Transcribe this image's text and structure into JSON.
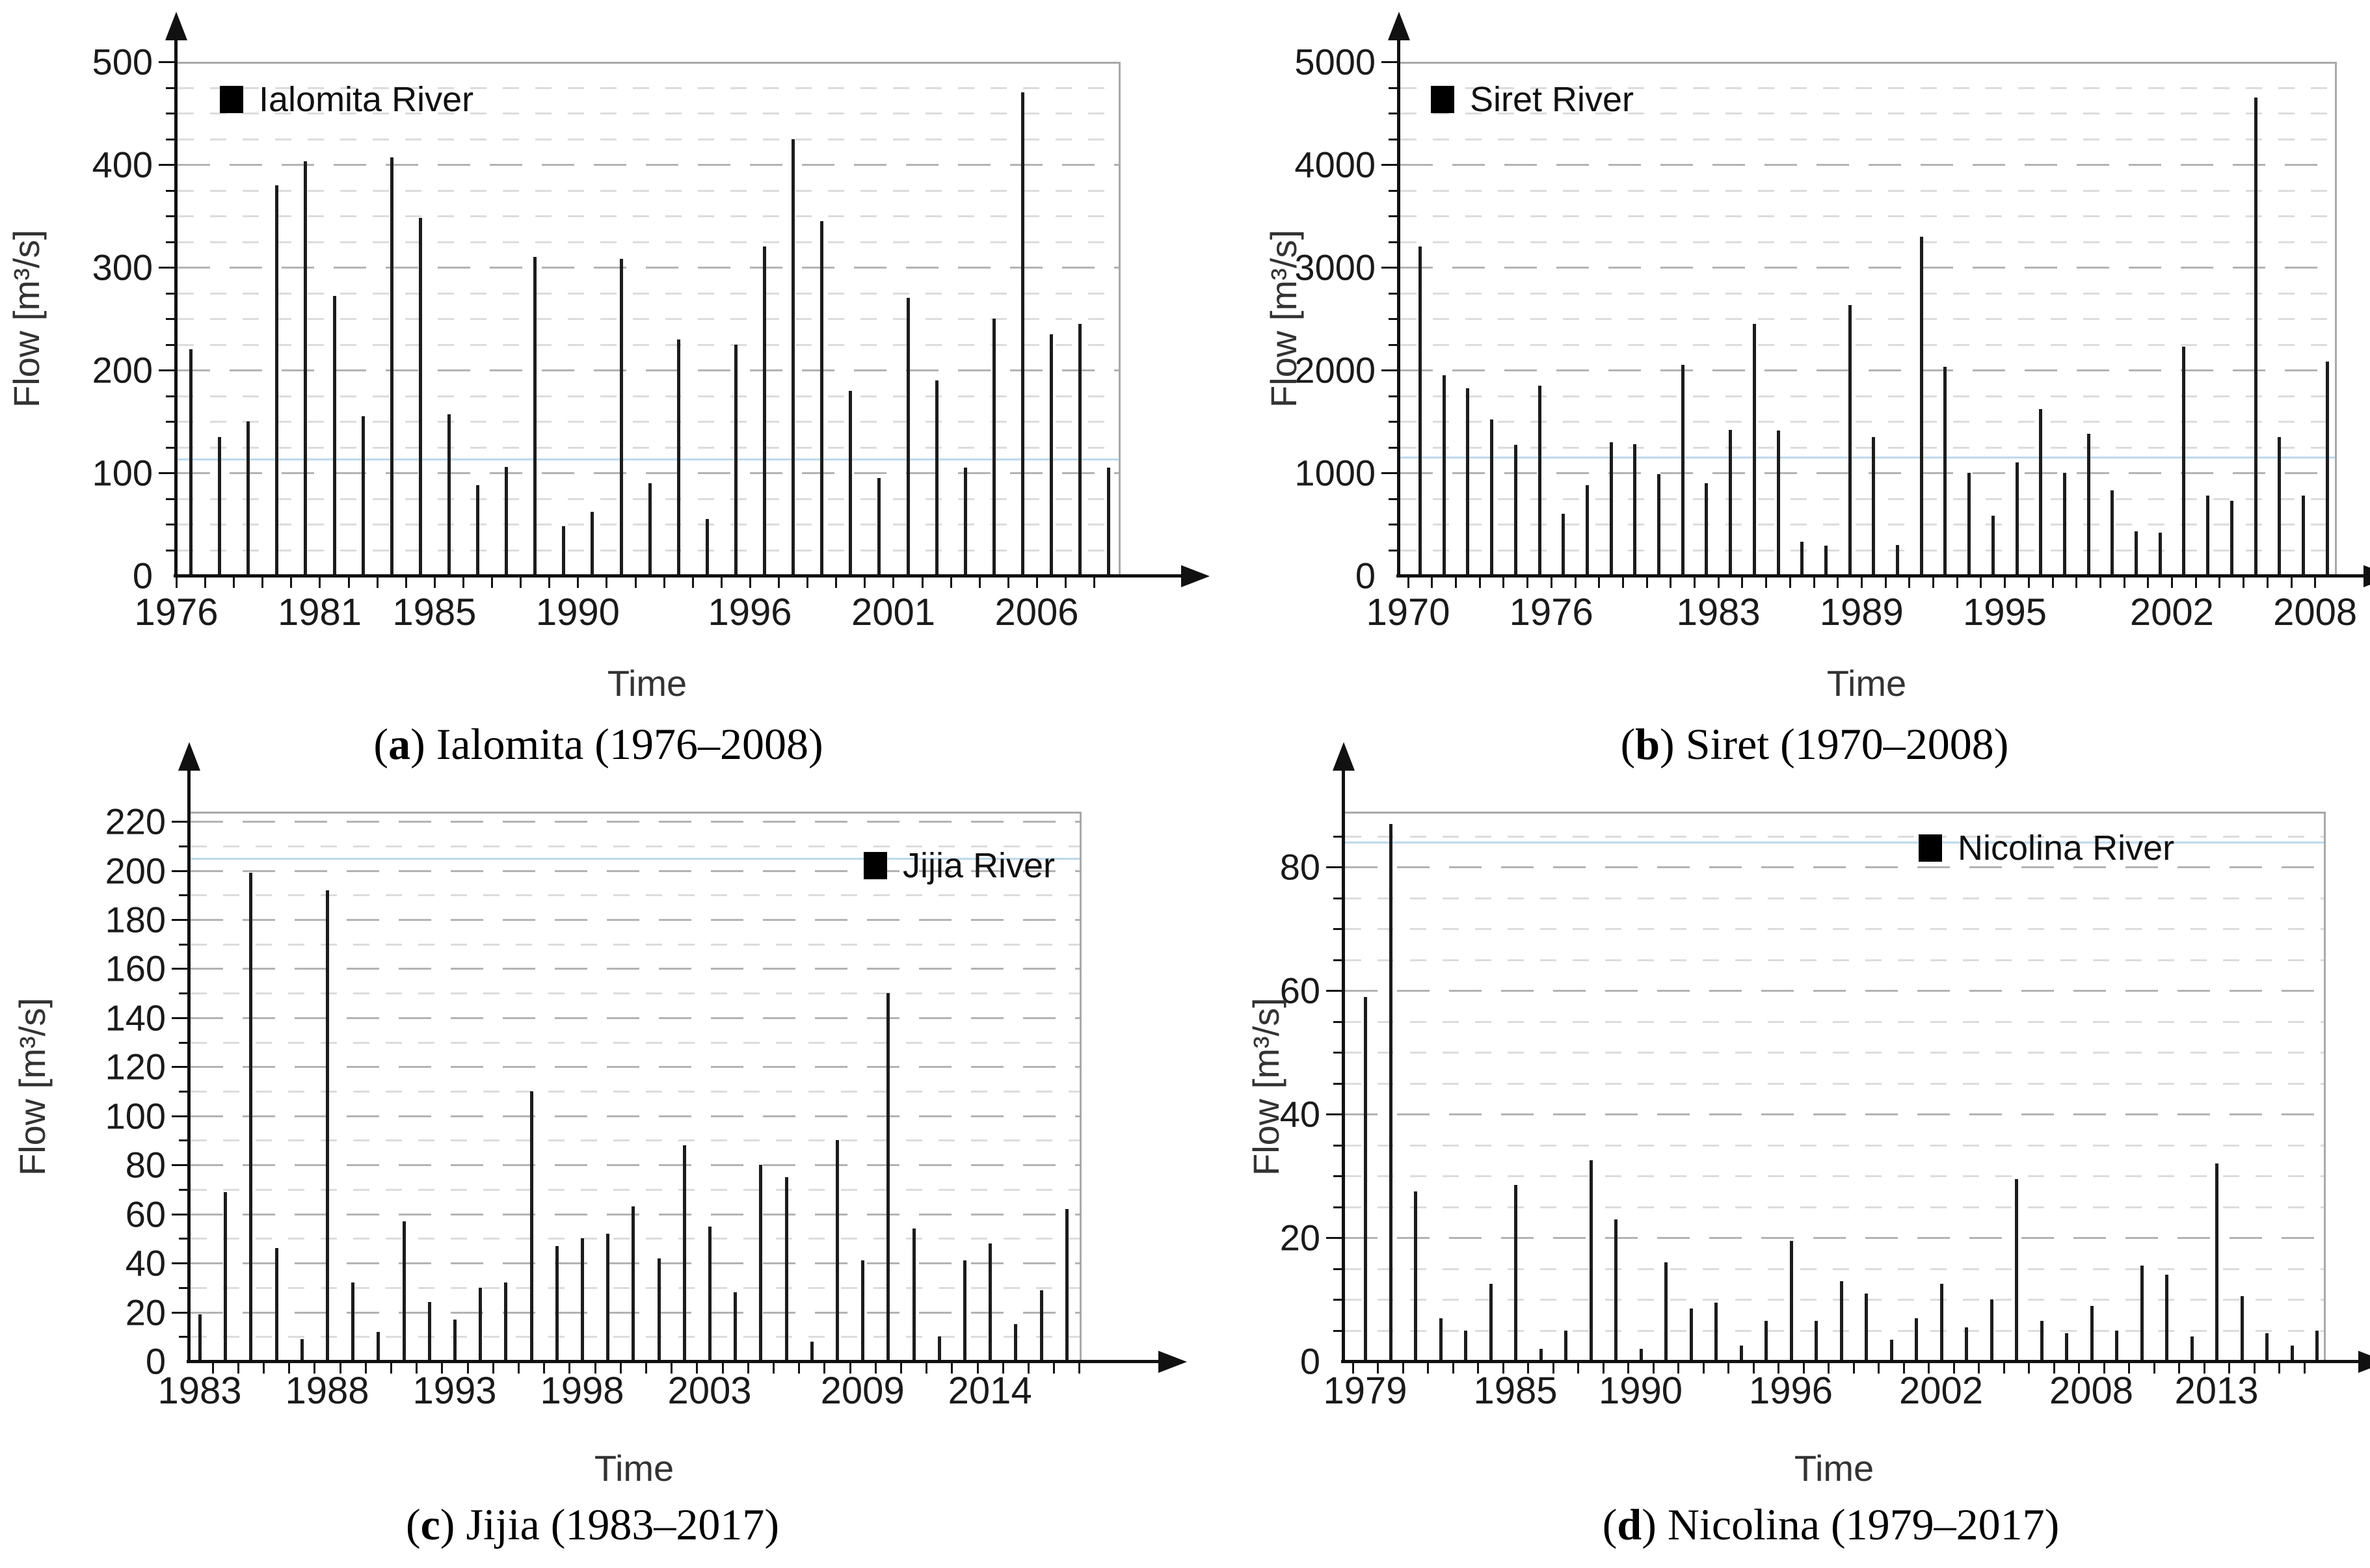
{
  "colors": {
    "bar": "#1c1c1c",
    "axis": "#111111",
    "grid_major": "#b3b3b3",
    "grid_minor": "#dcdcdc",
    "frame": "#a9a9a9",
    "ref_line": "#bcd9ee",
    "tick_label": "#1a1a1a",
    "axis_title": "#333333",
    "caption": "#000000"
  },
  "chart_data": [
    {
      "id": "a",
      "type": "bar",
      "series_name": "Ialomita River",
      "legend_position": "top-left",
      "caption": {
        "open": "(",
        "letter": "a",
        "close": ") ",
        "text": "Ialomita (1976–2008)"
      },
      "xlabel": "Time",
      "ylabel": "Flow [m³/s]",
      "ylim": [
        0,
        500
      ],
      "ytick_step": 100,
      "yminor_step": 25,
      "grid": true,
      "yticks": [
        0,
        100,
        200,
        300,
        400,
        500
      ],
      "xticks": [
        1976,
        1981,
        1985,
        1990,
        1996,
        2001,
        2006
      ],
      "ref_line_y": 113,
      "years": [
        1976,
        1977,
        1978,
        1979,
        1980,
        1981,
        1982,
        1983,
        1984,
        1985,
        1986,
        1987,
        1988,
        1989,
        1990,
        1991,
        1992,
        1993,
        1994,
        1995,
        1996,
        1997,
        1998,
        1999,
        2000,
        2001,
        2002,
        2003,
        2004,
        2005,
        2006,
        2007,
        2008
      ],
      "values": [
        220,
        135,
        150,
        380,
        403,
        272,
        155,
        407,
        348,
        157,
        88,
        106,
        310,
        48,
        62,
        308,
        90,
        230,
        55,
        225,
        320,
        425,
        345,
        180,
        95,
        270,
        190,
        105,
        250,
        470,
        235,
        245,
        105
      ]
    },
    {
      "id": "b",
      "type": "bar",
      "series_name": "Siret River",
      "legend_position": "top-left",
      "caption": {
        "open": "(",
        "letter": "b",
        "close": ") ",
        "text": "Siret (1970–2008)"
      },
      "xlabel": "Time",
      "ylabel": "Flow [m³/s]",
      "ylim": [
        0,
        5000
      ],
      "ytick_step": 1000,
      "yminor_step": 250,
      "grid": true,
      "yticks": [
        0,
        1000,
        2000,
        3000,
        4000,
        5000
      ],
      "xticks": [
        1970,
        1976,
        1983,
        1989,
        1995,
        2002,
        2008
      ],
      "ref_line_y": 1150,
      "years": [
        1970,
        1971,
        1972,
        1973,
        1974,
        1975,
        1976,
        1977,
        1978,
        1979,
        1980,
        1981,
        1982,
        1983,
        1984,
        1985,
        1986,
        1987,
        1988,
        1989,
        1990,
        1991,
        1992,
        1993,
        1994,
        1995,
        1996,
        1997,
        1998,
        1999,
        2000,
        2001,
        2002,
        2003,
        2004,
        2005,
        2006,
        2007,
        2008
      ],
      "values": [
        3200,
        1950,
        1820,
        1520,
        1270,
        1850,
        600,
        880,
        1300,
        1280,
        990,
        2050,
        900,
        1420,
        2450,
        1410,
        330,
        290,
        2630,
        1350,
        300,
        3300,
        2030,
        1000,
        580,
        1100,
        1620,
        1000,
        1380,
        830,
        430,
        420,
        2230,
        780,
        730,
        4650,
        1350,
        780,
        2080
      ]
    },
    {
      "id": "c",
      "type": "bar",
      "series_name": "Jijia River",
      "legend_position": "top-right",
      "caption": {
        "open": "(",
        "letter": "c",
        "close": ") ",
        "text": "Jijia (1983–2017)"
      },
      "xlabel": "Time",
      "ylabel": "Flow [m³/s]",
      "ylim": [
        0,
        220
      ],
      "ytick_step": 20,
      "yminor_step": 10,
      "grid": true,
      "yticks": [
        0,
        20,
        40,
        60,
        80,
        100,
        120,
        140,
        160,
        180,
        200,
        220
      ],
      "xticks": [
        1983,
        1988,
        1993,
        1998,
        2003,
        2009,
        2014
      ],
      "ref_line_y": 205,
      "years": [
        1983,
        1984,
        1985,
        1986,
        1987,
        1988,
        1989,
        1990,
        1991,
        1992,
        1993,
        1994,
        1995,
        1996,
        1997,
        1998,
        1999,
        2000,
        2001,
        2002,
        2003,
        2004,
        2005,
        2006,
        2007,
        2008,
        2009,
        2010,
        2011,
        2012,
        2013,
        2014,
        2015,
        2016,
        2017
      ],
      "values": [
        19,
        69,
        199,
        46,
        9,
        192,
        32,
        12,
        57,
        24,
        17,
        30,
        32,
        110,
        47,
        50,
        52,
        63,
        42,
        88,
        55,
        28,
        80,
        75,
        8,
        90,
        41,
        150,
        54,
        10,
        41,
        48,
        15,
        29,
        62
      ]
    },
    {
      "id": "d",
      "type": "bar",
      "series_name": "Nicolina River",
      "legend_position": "top-right",
      "caption": {
        "open": "(",
        "letter": "d",
        "close": ") ",
        "text": "Nicolina (1979–2017)"
      },
      "xlabel": "Time",
      "ylabel": "Flow [m³/s]",
      "ylim": [
        0,
        80
      ],
      "ytick_step": 20,
      "yminor_step": 5,
      "grid": true,
      "yticks": [
        0,
        20,
        40,
        60,
        80
      ],
      "xticks": [
        1979,
        1985,
        1990,
        1996,
        2002,
        2008,
        2013
      ],
      "ref_line_y": 84,
      "years": [
        1979,
        1980,
        1981,
        1982,
        1983,
        1984,
        1985,
        1986,
        1987,
        1988,
        1989,
        1990,
        1991,
        1992,
        1993,
        1994,
        1995,
        1996,
        1997,
        1998,
        1999,
        2000,
        2001,
        2002,
        2003,
        2004,
        2005,
        2006,
        2007,
        2008,
        2009,
        2010,
        2011,
        2012,
        2013,
        2014,
        2015,
        2016,
        2017
      ],
      "values": [
        59,
        87,
        27.5,
        7,
        5,
        12.5,
        28.5,
        2,
        5,
        32.5,
        23,
        2,
        16,
        8.5,
        9.5,
        2.5,
        6.5,
        19.5,
        6.5,
        13,
        11,
        3.5,
        7,
        12.5,
        5.5,
        10,
        29.5,
        6.5,
        4.5,
        9,
        5,
        15.5,
        14,
        4,
        32,
        10.5,
        4.5,
        2.5,
        5
      ]
    }
  ]
}
